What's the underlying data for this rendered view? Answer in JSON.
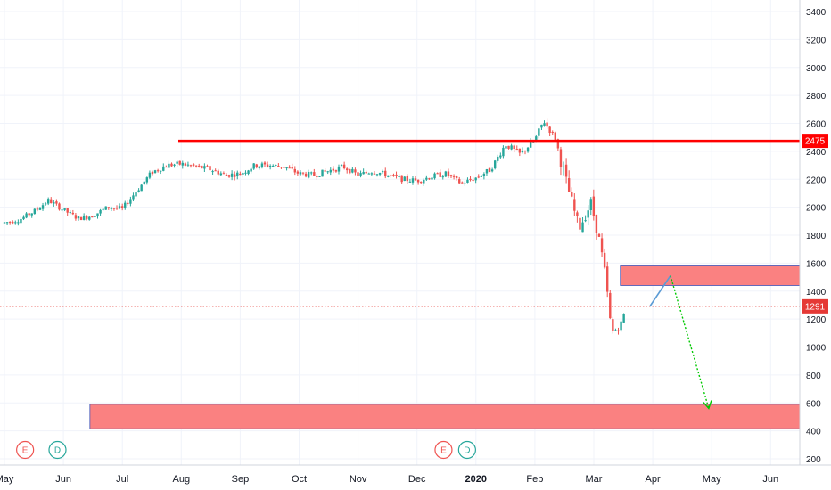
{
  "chart_data": {
    "type": "candlestick",
    "y_axis": {
      "ticks": [
        200,
        400,
        600,
        800,
        1000,
        1200,
        1400,
        1600,
        1800,
        2000,
        2200,
        2400,
        2600,
        2800,
        3000,
        3200,
        3400
      ],
      "range": [
        170,
        3470
      ],
      "position": "right"
    },
    "x_axis": {
      "labels": [
        {
          "text": "May",
          "bold": false
        },
        {
          "text": "Jun",
          "bold": false
        },
        {
          "text": "Jul",
          "bold": false
        },
        {
          "text": "Aug",
          "bold": false
        },
        {
          "text": "Sep",
          "bold": false
        },
        {
          "text": "Oct",
          "bold": false
        },
        {
          "text": "Nov",
          "bold": false
        },
        {
          "text": "Dec",
          "bold": false
        },
        {
          "text": "2020",
          "bold": true
        },
        {
          "text": "Feb",
          "bold": false
        },
        {
          "text": "Mar",
          "bold": false
        },
        {
          "text": "Apr",
          "bold": false
        },
        {
          "text": "May",
          "bold": false
        },
        {
          "text": "Jun",
          "bold": false
        }
      ]
    },
    "grid": true,
    "price_lines": [
      {
        "label": "2475",
        "value": 2475,
        "color": "#ff0000",
        "style": "solid"
      },
      {
        "label": "1291",
        "value": 1291,
        "color": "#e53935",
        "style": "dotted"
      }
    ],
    "zones": [
      {
        "from": 1440,
        "to": 1580,
        "from_month": 10.45,
        "color": "#fa7a7a"
      },
      {
        "from": 415,
        "to": 590,
        "from_month": 1.45,
        "color": "#fa7a7a"
      }
    ],
    "projection": [
      {
        "month": 10.95,
        "value": 1290
      },
      {
        "month": 11.3,
        "value": 1510
      },
      {
        "month": 11.95,
        "value": 560
      }
    ],
    "event_markers": [
      {
        "text": "E",
        "month": 0.35,
        "color": "#ef5350"
      },
      {
        "text": "D",
        "month": 0.9,
        "color": "#26a69a"
      },
      {
        "text": "E",
        "month": 7.45,
        "color": "#ef5350"
      },
      {
        "text": "D",
        "month": 7.85,
        "color": "#26a69a"
      }
    ],
    "series_close": [
      [
        0.0,
        1890
      ],
      [
        0.25,
        1910
      ],
      [
        0.5,
        1970
      ],
      [
        0.75,
        2050
      ],
      [
        1.0,
        1980
      ],
      [
        1.25,
        1920
      ],
      [
        1.5,
        1940
      ],
      [
        1.75,
        2000
      ],
      [
        2.0,
        1990
      ],
      [
        2.25,
        2120
      ],
      [
        2.5,
        2250
      ],
      [
        2.75,
        2300
      ],
      [
        3.0,
        2310
      ],
      [
        3.25,
        2290
      ],
      [
        3.5,
        2270
      ],
      [
        3.75,
        2230
      ],
      [
        4.0,
        2240
      ],
      [
        4.25,
        2300
      ],
      [
        4.5,
        2300
      ],
      [
        4.75,
        2290
      ],
      [
        5.0,
        2240
      ],
      [
        5.25,
        2230
      ],
      [
        5.5,
        2260
      ],
      [
        5.75,
        2290
      ],
      [
        6.0,
        2230
      ],
      [
        6.25,
        2260
      ],
      [
        6.5,
        2230
      ],
      [
        6.75,
        2200
      ],
      [
        7.0,
        2190
      ],
      [
        7.25,
        2220
      ],
      [
        7.5,
        2240
      ],
      [
        7.75,
        2170
      ],
      [
        8.0,
        2210
      ],
      [
        8.25,
        2270
      ],
      [
        8.5,
        2450
      ],
      [
        8.75,
        2380
      ],
      [
        9.0,
        2480
      ],
      [
        9.15,
        2620
      ],
      [
        9.35,
        2490
      ],
      [
        9.55,
        2150
      ],
      [
        9.75,
        1850
      ],
      [
        9.95,
        2030
      ],
      [
        10.1,
        1750
      ],
      [
        10.2,
        1500
      ],
      [
        10.3,
        1100
      ],
      [
        10.45,
        1150
      ],
      [
        10.55,
        1291
      ]
    ]
  }
}
